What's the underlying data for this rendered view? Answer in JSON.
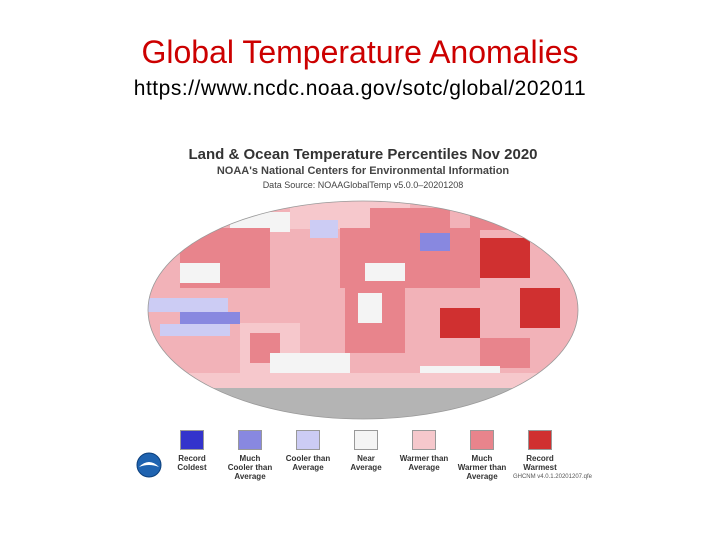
{
  "slide": {
    "title": "Global Temperature Anomalies",
    "url": "https://www.ncdc.noaa.gov/sotc/global/202011"
  },
  "map": {
    "title": "Land & Ocean Temperature Percentiles Nov 2020",
    "subtitle": "NOAA's National Centers for Environmental Information",
    "source": "Data Source: NOAAGlobalTemp v5.0.0–20201208",
    "version": "GHCNM v4.0.1.20201207.qfe"
  },
  "legend": [
    {
      "label": "Record\nColdest",
      "color": "#3333cc"
    },
    {
      "label": "Much\nCooler than\nAverage",
      "color": "#8888e0"
    },
    {
      "label": "Cooler than\nAverage",
      "color": "#ccccf4"
    },
    {
      "label": "Near\nAverage",
      "color": "#f4f4f4"
    },
    {
      "label": "Warmer than\nAverage",
      "color": "#f6c8cc"
    },
    {
      "label": "Much\nWarmer than\nAverage",
      "color": "#e8848c"
    },
    {
      "label": "Record\nWarmest",
      "color": "#d03030"
    }
  ],
  "colors": {
    "no_data": "#b4b4b4",
    "ocean_base": "#f2b2b8"
  }
}
